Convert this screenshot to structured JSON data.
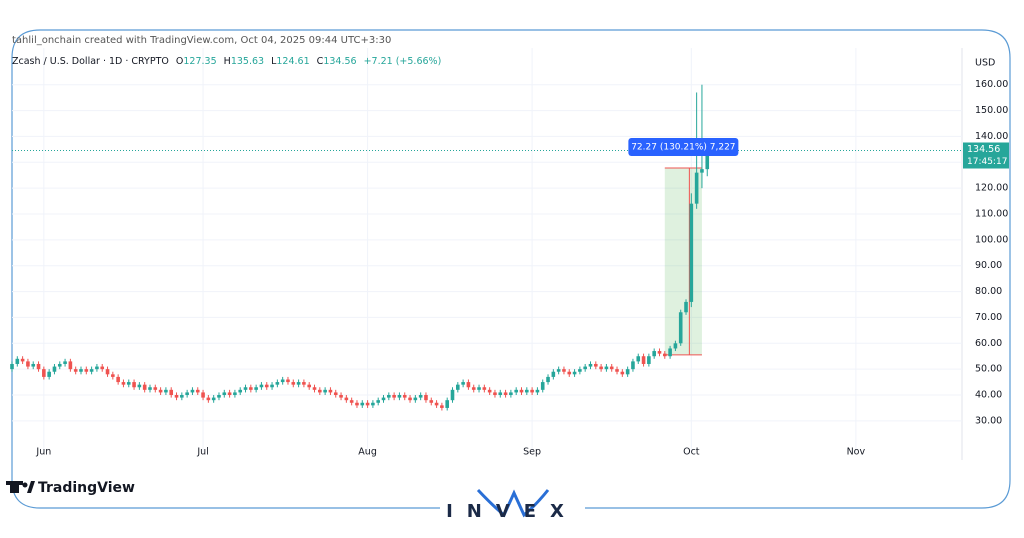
{
  "header": {
    "credit": "tahlil_onchain created with TradingView.com, Oct 04, 2025 09:44 UTC+3:30",
    "symbol": "Zcash / U.S. Dollar · 1D · CRYPTO",
    "ohlc": [
      {
        "label": "O",
        "value": "127.35"
      },
      {
        "label": "H",
        "value": "135.63"
      },
      {
        "label": "L",
        "value": "124.61"
      },
      {
        "label": "C",
        "value": "134.56"
      }
    ],
    "change": "+7.21 (+5.66%)"
  },
  "chart_data": {
    "type": "candlestick",
    "axis_unit": "USD",
    "up_color": "#26a69a",
    "down_color": "#ef5350",
    "grid": true,
    "x": [
      0,
      1,
      2,
      3,
      4,
      5,
      6,
      7,
      8,
      9,
      10,
      11,
      12,
      13,
      14,
      15,
      16,
      17,
      18,
      19,
      20,
      21,
      22,
      23,
      24,
      25,
      26,
      27,
      28,
      29,
      30,
      31,
      32,
      33,
      34,
      35,
      36,
      37,
      38,
      39,
      40,
      41,
      42,
      43,
      44,
      45,
      46,
      47,
      48,
      49,
      50,
      51,
      52,
      53,
      54,
      55,
      56,
      57,
      58,
      59,
      60,
      61,
      62,
      63,
      64,
      65,
      66,
      67,
      68,
      69,
      70,
      71,
      72,
      73,
      74,
      75,
      76,
      77,
      78,
      79,
      80,
      81,
      82,
      83,
      84,
      85,
      86,
      87,
      88,
      89,
      90,
      91,
      92,
      93,
      94,
      95,
      96,
      97,
      98,
      99,
      100,
      101,
      102,
      103,
      104,
      105,
      106,
      107,
      108,
      109,
      110,
      111,
      112,
      113,
      114,
      115,
      116,
      117,
      118,
      119,
      120,
      121,
      122,
      123,
      124,
      125,
      126,
      127,
      128,
      129,
      130,
      131
    ],
    "open": [
      50,
      52,
      54,
      53,
      51,
      52,
      50,
      47,
      49,
      51,
      52,
      53,
      50,
      49,
      50,
      49,
      50,
      51,
      50,
      48,
      47,
      45,
      44,
      45,
      43,
      44,
      42,
      43,
      42,
      41,
      42,
      40,
      39,
      40,
      41,
      42,
      41,
      39,
      38,
      39,
      40,
      41,
      40,
      41,
      42,
      43,
      42,
      43,
      44,
      43,
      44,
      45,
      46,
      45,
      44,
      45,
      44,
      43,
      42,
      41,
      42,
      41,
      40,
      39,
      38,
      37,
      36,
      37,
      36,
      37,
      38,
      39,
      40,
      39,
      40,
      39,
      38,
      39,
      40,
      38,
      37,
      36,
      35,
      38,
      42,
      44,
      45,
      43,
      42,
      43,
      42,
      41,
      40,
      41,
      40,
      41,
      42,
      41,
      42,
      41,
      42,
      45,
      47,
      49,
      50,
      49,
      48,
      49,
      50,
      51,
      52,
      51,
      50,
      51,
      50,
      49,
      48,
      50,
      53,
      55,
      52,
      55,
      57,
      56,
      55,
      58,
      60,
      72,
      76,
      114,
      126,
      127.35
    ],
    "high": [
      53,
      55,
      55,
      54,
      53,
      53,
      51,
      50,
      52,
      53,
      54,
      54,
      51,
      51,
      51,
      51,
      52,
      52,
      51,
      49,
      48,
      46,
      46,
      46,
      45,
      45,
      44,
      44,
      43,
      43,
      43,
      41,
      41,
      42,
      43,
      43,
      42,
      40,
      40,
      41,
      42,
      42,
      42,
      43,
      44,
      44,
      44,
      45,
      45,
      45,
      46,
      47,
      47,
      46,
      46,
      46,
      45,
      44,
      43,
      43,
      43,
      42,
      41,
      40,
      39,
      38,
      38,
      38,
      38,
      39,
      40,
      41,
      41,
      41,
      41,
      40,
      40,
      41,
      41,
      39,
      38,
      37,
      39,
      43,
      45,
      46,
      46,
      44,
      44,
      44,
      43,
      42,
      42,
      42,
      42,
      43,
      43,
      43,
      43,
      43,
      46,
      48,
      50,
      51,
      51,
      50,
      50,
      51,
      52,
      53,
      53,
      52,
      52,
      52,
      51,
      50,
      51,
      54,
      56,
      56,
      56,
      58,
      58,
      57,
      59,
      61,
      73,
      77,
      118,
      157,
      160,
      135.63
    ],
    "low": [
      49,
      51,
      52,
      50,
      50,
      49,
      46,
      46,
      48,
      50,
      51,
      49,
      48,
      48,
      48,
      48,
      49,
      49,
      47,
      46,
      44,
      43,
      43,
      42,
      42,
      41,
      41,
      41,
      40,
      40,
      39,
      38,
      38,
      39,
      40,
      40,
      38,
      37,
      37,
      38,
      39,
      39,
      39,
      40,
      41,
      41,
      41,
      42,
      42,
      42,
      43,
      44,
      44,
      43,
      43,
      43,
      42,
      41,
      40,
      40,
      40,
      39,
      38,
      37,
      36,
      35,
      35,
      35,
      35,
      36,
      37,
      38,
      38,
      38,
      38,
      37,
      37,
      38,
      37,
      36,
      35,
      34,
      34,
      37,
      41,
      43,
      42,
      41,
      41,
      41,
      40,
      39,
      39,
      39,
      39,
      40,
      40,
      40,
      40,
      40,
      41,
      44,
      46,
      48,
      48,
      47,
      47,
      48,
      49,
      50,
      50,
      49,
      49,
      49,
      48,
      47,
      47,
      49,
      52,
      51,
      51,
      54,
      55,
      54,
      54,
      57,
      59,
      71,
      74,
      112,
      120,
      124.61
    ],
    "close": [
      52,
      54,
      53,
      51,
      52,
      50,
      47,
      49,
      51,
      52,
      53,
      50,
      49,
      50,
      49,
      50,
      51,
      50,
      48,
      47,
      45,
      44,
      45,
      43,
      44,
      42,
      43,
      42,
      41,
      42,
      40,
      39,
      40,
      41,
      42,
      41,
      39,
      38,
      39,
      40,
      41,
      40,
      41,
      42,
      43,
      42,
      43,
      44,
      43,
      44,
      45,
      46,
      45,
      44,
      45,
      44,
      43,
      42,
      41,
      42,
      41,
      40,
      39,
      38,
      37,
      36,
      37,
      36,
      37,
      38,
      39,
      40,
      39,
      40,
      39,
      38,
      39,
      40,
      38,
      37,
      36,
      35,
      38,
      42,
      44,
      45,
      43,
      42,
      43,
      42,
      41,
      40,
      41,
      40,
      41,
      42,
      41,
      42,
      41,
      42,
      45,
      47,
      49,
      50,
      49,
      48,
      49,
      50,
      51,
      52,
      51,
      50,
      51,
      50,
      49,
      48,
      50,
      53,
      55,
      52,
      55,
      57,
      56,
      55,
      58,
      60,
      72,
      76,
      114,
      126,
      127.35,
      134.56
    ],
    "xlim": [
      0,
      179
    ],
    "xticks": [
      {
        "value": 6,
        "label": "Jun"
      },
      {
        "value": 36,
        "label": "Jul"
      },
      {
        "value": 67,
        "label": "Aug"
      },
      {
        "value": 98,
        "label": "Sep"
      },
      {
        "value": 128,
        "label": "Oct"
      },
      {
        "value": 159,
        "label": "Nov"
      }
    ],
    "ylim": [
      22.6,
      174.2
    ],
    "yticks": [
      {
        "value": 30,
        "label": "30.00"
      },
      {
        "value": 40,
        "label": "40.00"
      },
      {
        "value": 50,
        "label": "50.00"
      },
      {
        "value": 60,
        "label": "60.00"
      },
      {
        "value": 70,
        "label": "70.00"
      },
      {
        "value": 80,
        "label": "80.00"
      },
      {
        "value": 90,
        "label": "90.00"
      },
      {
        "value": 100,
        "label": "100.00"
      },
      {
        "value": 110,
        "label": "110.00"
      },
      {
        "value": 120,
        "label": "120.00"
      },
      {
        "value": 130,
        "label": "130.00"
      },
      {
        "value": 140,
        "label": "140.00"
      },
      {
        "value": 150,
        "label": "150.00"
      },
      {
        "value": 160,
        "label": "160.00"
      }
    ],
    "last_price": {
      "value": 134.56,
      "label": "134.56",
      "countdown": "17:45:17"
    },
    "measure": {
      "label": "72.27 (130.21%) 7,227",
      "from": 55.5,
      "to": 127.77,
      "x_from": 123,
      "x_to": 130
    }
  },
  "footer": {
    "brand": "TradingView",
    "watermark": "INVEX"
  }
}
